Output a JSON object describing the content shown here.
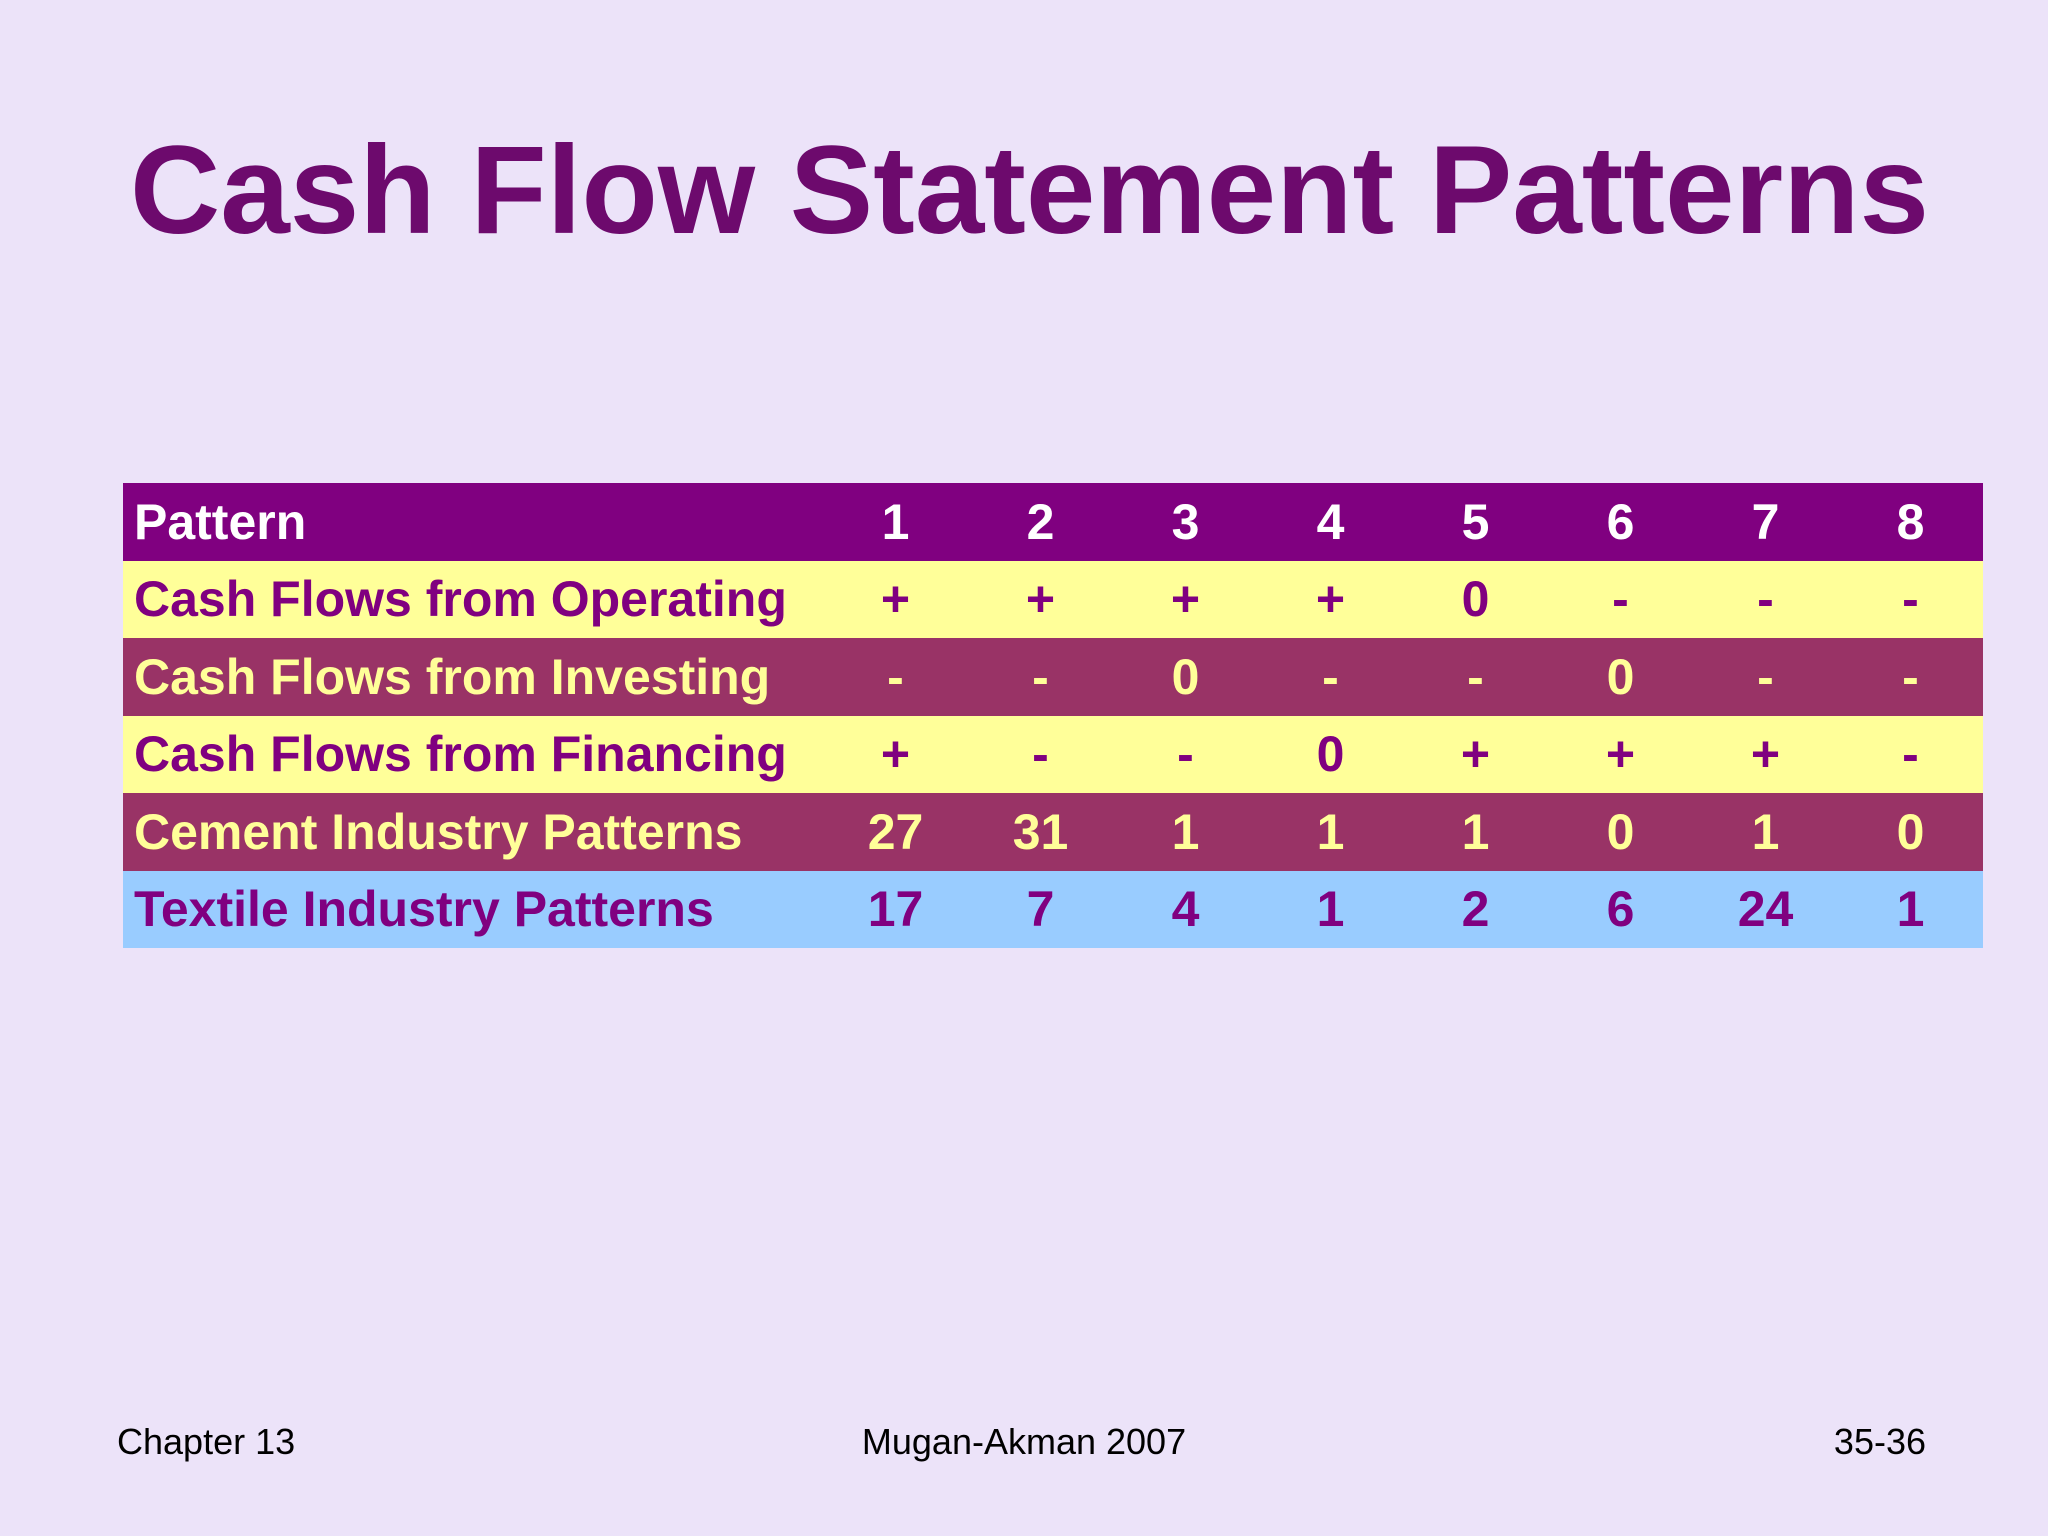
{
  "slide": {
    "title": "Cash Flow Statement Patterns",
    "footer": {
      "left": "Chapter 13",
      "center": "Mugan-Akman 2007",
      "right": "35-36"
    }
  },
  "table": {
    "header": {
      "label": "Pattern",
      "columns": [
        "1",
        "2",
        "3",
        "4",
        "5",
        "6",
        "7",
        "8"
      ]
    },
    "rows": [
      {
        "label": "Cash Flows from Operating",
        "values": [
          "+",
          "+",
          "+",
          "+",
          "0",
          "-",
          "-",
          "-"
        ],
        "theme": "yellow"
      },
      {
        "label": "Cash Flows from Investing",
        "values": [
          "-",
          "-",
          "0",
          "-",
          "-",
          "0",
          "-",
          "-"
        ],
        "theme": "maroon"
      },
      {
        "label": "Cash Flows from Financing",
        "values": [
          "+",
          "-",
          "-",
          "0",
          "+",
          "+",
          "+",
          "-"
        ],
        "theme": "yellow"
      },
      {
        "label": "Cement Industry Patterns",
        "values": [
          "27",
          "31",
          "1",
          "1",
          "1",
          "0",
          "1",
          "0"
        ],
        "theme": "maroon"
      },
      {
        "label": "Textile Industry Patterns",
        "values": [
          "17",
          "7",
          "4",
          "1",
          "2",
          "6",
          "24",
          "1"
        ],
        "theme": "blue"
      }
    ]
  },
  "colors": {
    "background": "#ECE3F9",
    "title_text": "#6D0A6D",
    "header_row_bg": "#800080",
    "header_row_text": "#FFFFFF",
    "yellow_row_bg": "#FFFF99",
    "maroon_row_bg": "#993366",
    "blue_row_bg": "#99CCFF",
    "purple_row_text": "#800080",
    "yellow_row_text": "#FFFF99",
    "footer_text": "#000000"
  },
  "chart_data": {
    "type": "table",
    "title": "Cash Flow Statement Patterns",
    "categories": [
      "1",
      "2",
      "3",
      "4",
      "5",
      "6",
      "7",
      "8"
    ],
    "series": [
      {
        "name": "Cash Flows from Operating",
        "values": [
          "+",
          "+",
          "+",
          "+",
          "0",
          "-",
          "-",
          "-"
        ]
      },
      {
        "name": "Cash Flows from Investing",
        "values": [
          "-",
          "-",
          "0",
          "-",
          "-",
          "0",
          "-",
          "-"
        ]
      },
      {
        "name": "Cash Flows from Financing",
        "values": [
          "+",
          "-",
          "-",
          "0",
          "+",
          "+",
          "+",
          "-"
        ]
      },
      {
        "name": "Cement Industry Patterns",
        "values": [
          27,
          31,
          1,
          1,
          1,
          0,
          1,
          0
        ]
      },
      {
        "name": "Textile Industry Patterns",
        "values": [
          17,
          7,
          4,
          1,
          2,
          6,
          24,
          1
        ]
      }
    ]
  }
}
